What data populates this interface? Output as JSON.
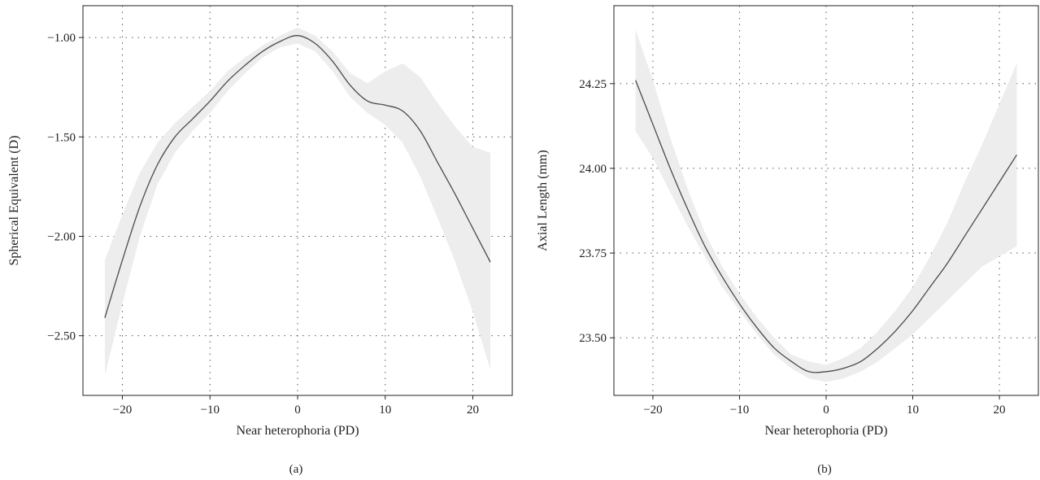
{
  "chart_data": [
    {
      "type": "line",
      "panel_label": "(a)",
      "xlabel": "Near heterophoria (PD)",
      "ylabel": "Spherical Equivalent (D)",
      "xlim": [
        -24.5,
        24.5
      ],
      "ylim": [
        -2.8,
        -0.84
      ],
      "xticks": [
        -20,
        -10,
        0,
        10,
        20
      ],
      "xtick_labels": [
        "−20",
        "−10",
        "0",
        "10",
        "20"
      ],
      "yticks": [
        -2.5,
        -2.0,
        -1.5,
        -1.0
      ],
      "ytick_labels": [
        "−2.50",
        "−2.00",
        "−1.50",
        "−1.00"
      ],
      "grid": true,
      "band_color": "#ededed",
      "line_color": "#4a4a4a",
      "series": [
        {
          "x": [
            -22,
            -20,
            -18,
            -16,
            -14,
            -12,
            -10,
            -8,
            -6,
            -4,
            -2,
            0,
            2,
            4,
            6,
            8,
            10,
            12,
            14,
            16,
            18,
            20,
            22
          ],
          "y": [
            -2.41,
            -2.12,
            -1.85,
            -1.64,
            -1.5,
            -1.41,
            -1.32,
            -1.22,
            -1.14,
            -1.07,
            -1.02,
            -0.99,
            -1.03,
            -1.12,
            -1.24,
            -1.32,
            -1.34,
            -1.37,
            -1.47,
            -1.63,
            -1.79,
            -1.96,
            -2.13
          ],
          "lower": [
            -2.7,
            -2.34,
            -2.0,
            -1.74,
            -1.58,
            -1.47,
            -1.38,
            -1.27,
            -1.18,
            -1.1,
            -1.05,
            -1.03,
            -1.07,
            -1.17,
            -1.3,
            -1.38,
            -1.44,
            -1.53,
            -1.7,
            -1.91,
            -2.13,
            -2.38,
            -2.67
          ],
          "upper": [
            -2.12,
            -1.89,
            -1.68,
            -1.53,
            -1.43,
            -1.35,
            -1.27,
            -1.17,
            -1.1,
            -1.04,
            -0.99,
            -0.95,
            -0.99,
            -1.07,
            -1.18,
            -1.23,
            -1.17,
            -1.13,
            -1.2,
            -1.33,
            -1.45,
            -1.55,
            -1.58
          ]
        }
      ]
    },
    {
      "type": "line",
      "panel_label": "(b)",
      "xlabel": "Near heterophoria (PD)",
      "ylabel": "Axial Length (mm)",
      "xlim": [
        -24.5,
        24.5
      ],
      "ylim": [
        23.33,
        24.48
      ],
      "xticks": [
        -20,
        -10,
        0,
        10,
        20
      ],
      "xtick_labels": [
        "−20",
        "−10",
        "0",
        "10",
        "20"
      ],
      "yticks": [
        23.5,
        23.75,
        24.0,
        24.25
      ],
      "ytick_labels": [
        "23.50",
        "23.75",
        "24.00",
        "24.25"
      ],
      "grid": true,
      "band_color": "#ededed",
      "line_color": "#4a4a4a",
      "series": [
        {
          "x": [
            -22,
            -20,
            -18,
            -16,
            -14,
            -12,
            -10,
            -8,
            -6,
            -4,
            -2,
            0,
            2,
            4,
            6,
            8,
            10,
            12,
            14,
            16,
            18,
            20,
            22
          ],
          "y": [
            24.26,
            24.13,
            24.0,
            23.88,
            23.77,
            23.68,
            23.6,
            23.53,
            23.47,
            23.43,
            23.4,
            23.4,
            23.41,
            23.43,
            23.47,
            23.52,
            23.58,
            23.65,
            23.72,
            23.8,
            23.88,
            23.96,
            24.04
          ],
          "lower": [
            24.11,
            24.03,
            23.93,
            23.83,
            23.74,
            23.65,
            23.58,
            23.51,
            23.45,
            23.41,
            23.38,
            23.37,
            23.38,
            23.4,
            23.43,
            23.47,
            23.51,
            23.56,
            23.61,
            23.66,
            23.71,
            23.74,
            23.77
          ],
          "upper": [
            24.41,
            24.26,
            24.09,
            23.94,
            23.81,
            23.71,
            23.63,
            23.56,
            23.5,
            23.45,
            23.43,
            23.42,
            23.44,
            23.47,
            23.52,
            23.58,
            23.65,
            23.74,
            23.84,
            23.96,
            24.07,
            24.19,
            24.31
          ]
        }
      ]
    }
  ]
}
